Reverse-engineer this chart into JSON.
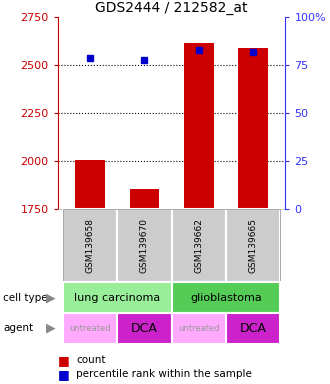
{
  "title": "GDS2444 / 212582_at",
  "samples": [
    "GSM139658",
    "GSM139670",
    "GSM139662",
    "GSM139665"
  ],
  "bar_values": [
    2007,
    1855,
    2617,
    2590
  ],
  "percentile_values": [
    79,
    78,
    83,
    82
  ],
  "ylim": [
    1750,
    2750
  ],
  "yticks": [
    1750,
    2000,
    2250,
    2500,
    2750
  ],
  "right_ylim": [
    0,
    100
  ],
  "right_yticks": [
    0,
    25,
    50,
    75,
    100
  ],
  "right_yticklabels": [
    "0",
    "25",
    "50",
    "75",
    "100%"
  ],
  "bar_color": "#cc0000",
  "dot_color": "#0000cc",
  "bar_width": 0.55,
  "cell_type_groups": [
    {
      "label": "lung carcinoma",
      "start": 0,
      "end": 2,
      "color": "#99ee99"
    },
    {
      "label": "glioblastoma",
      "start": 2,
      "end": 4,
      "color": "#55cc55"
    }
  ],
  "agents": [
    "untreated",
    "DCA",
    "untreated",
    "DCA"
  ],
  "agent_colors_map": {
    "untreated": "#ffaaff",
    "DCA": "#cc22cc"
  },
  "agent_text_colors": {
    "untreated": "#999999",
    "DCA": "#000000"
  },
  "agent_fontsizes": {
    "untreated": 6,
    "DCA": 9
  },
  "sample_box_color": "#cccccc",
  "left_axis_color": "#cc0000",
  "right_axis_color": "#3333ff",
  "dotted_line_yticks": [
    25,
    50,
    75
  ]
}
